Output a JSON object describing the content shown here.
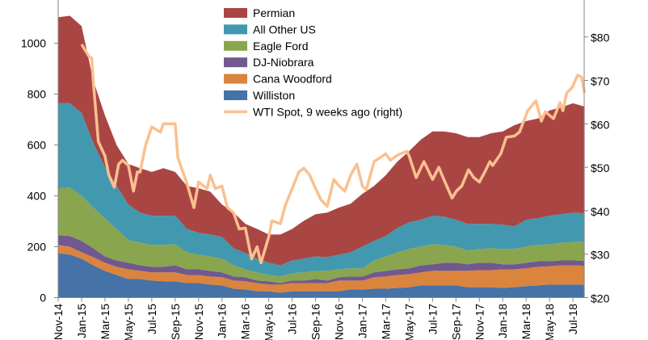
{
  "chart_data": {
    "type": "area",
    "stacked": true,
    "title": "",
    "xlabel": "",
    "ylabel": "",
    "y2label": "",
    "ylim": [
      0,
      1170
    ],
    "y2lim": [
      20,
      88.5
    ],
    "yticks": [
      0,
      200,
      400,
      600,
      800,
      1000
    ],
    "y2ticks": [
      "$20",
      "$30",
      "$40",
      "$50",
      "$60",
      "$70",
      "$80"
    ],
    "y2tick_values": [
      20,
      30,
      40,
      50,
      60,
      70,
      80
    ],
    "grid": false,
    "legend_position": "top-center",
    "x_tick_labels": [
      "Nov-14",
      "Jan-15",
      "Mar-15",
      "May-15",
      "Jul-15",
      "Sep-15",
      "Nov-15",
      "Jan-16",
      "Mar-16",
      "May-16",
      "Jul-16",
      "Sep-16",
      "Nov-16",
      "Jan-17",
      "Mar-17",
      "May-17",
      "Jul-17",
      "Sep-17",
      "Nov-17",
      "Jan-18",
      "Mar-18",
      "May-18",
      "Jul-18"
    ],
    "x": [
      "2014-11",
      "2014-12",
      "2015-01",
      "2015-02",
      "2015-03",
      "2015-04",
      "2015-05",
      "2015-06",
      "2015-07",
      "2015-08",
      "2015-09",
      "2015-10",
      "2015-11",
      "2015-12",
      "2016-01",
      "2016-02",
      "2016-03",
      "2016-04",
      "2016-05",
      "2016-06",
      "2016-07",
      "2016-08",
      "2016-09",
      "2016-10",
      "2016-11",
      "2016-12",
      "2017-01",
      "2017-02",
      "2017-03",
      "2017-04",
      "2017-05",
      "2017-06",
      "2017-07",
      "2017-08",
      "2017-09",
      "2017-10",
      "2017-11",
      "2017-12",
      "2018-01",
      "2018-02",
      "2018-03",
      "2018-04",
      "2018-05",
      "2018-06",
      "2018-07",
      "2018-08"
    ],
    "series": [
      {
        "name": "Williston",
        "color": "#4572A7",
        "values": [
          175,
          169,
          153,
          127,
          105,
          89,
          73,
          73,
          67,
          64,
          64,
          57,
          57,
          51,
          48,
          35,
          32,
          25,
          25,
          19,
          25,
          25,
          25,
          25,
          25,
          32,
          32,
          35,
          35,
          38,
          41,
          48,
          48,
          48,
          48,
          41,
          41,
          41,
          38,
          41,
          45,
          48,
          51,
          51,
          51,
          51
        ]
      },
      {
        "name": "Cana Woodford",
        "color": "#DB843D",
        "values": [
          32,
          31,
          25,
          32,
          32,
          32,
          38,
          32,
          32,
          35,
          35,
          32,
          32,
          32,
          32,
          32,
          32,
          32,
          26,
          32,
          32,
          32,
          32,
          32,
          42,
          35,
          35,
          45,
          48,
          51,
          51,
          51,
          57,
          57,
          57,
          64,
          67,
          67,
          73,
          70,
          70,
          73,
          72,
          76,
          76,
          74
        ]
      },
      {
        "name": "DJ-Niobrara",
        "color": "#71588F",
        "values": [
          38,
          42,
          45,
          35,
          25,
          25,
          26,
          22,
          22,
          22,
          28,
          22,
          22,
          22,
          19,
          16,
          16,
          10,
          13,
          6,
          10,
          10,
          16,
          10,
          13,
          16,
          16,
          19,
          22,
          22,
          23,
          28,
          26,
          32,
          32,
          26,
          29,
          29,
          20,
          20,
          22,
          22,
          20,
          19,
          19,
          20
        ]
      },
      {
        "name": "Eagle Ford",
        "color": "#89A54E",
        "values": [
          185,
          191,
          178,
          160,
          150,
          124,
          89,
          89,
          86,
          86,
          83,
          67,
          58,
          57,
          54,
          44,
          31,
          32,
          25,
          26,
          29,
          32,
          32,
          38,
          31,
          32,
          32,
          47,
          57,
          67,
          76,
          74,
          79,
          70,
          64,
          54,
          54,
          57,
          60,
          60,
          64,
          64,
          67,
          70,
          72,
          73
        ]
      },
      {
        "name": "All Other US",
        "color": "#4298AF",
        "values": [
          334,
          331,
          325,
          254,
          201,
          169,
          140,
          118,
          115,
          115,
          112,
          92,
          86,
          86,
          86,
          67,
          64,
          54,
          48,
          44,
          50,
          54,
          57,
          54,
          58,
          63,
          86,
          77,
          80,
          96,
          105,
          105,
          112,
          111,
          105,
          105,
          99,
          96,
          96,
          89,
          105,
          105,
          112,
          112,
          116,
          113
        ]
      },
      {
        "name": "Permian",
        "color": "#A94644",
        "values": [
          338,
          344,
          341,
          246,
          203,
          160,
          159,
          175,
          172,
          187,
          172,
          169,
          175,
          169,
          127,
          140,
          115,
          117,
          111,
          121,
          124,
          149,
          166,
          175,
          185,
          191,
          207,
          216,
          239,
          261,
          280,
          315,
          331,
          335,
          340,
          341,
          341,
          356,
          366,
          398,
          388,
          392,
          414,
          420,
          430,
          420
        ]
      }
    ],
    "line_series": {
      "name": "WTI Spot, 9 weeks ago (right)",
      "axis": "right",
      "color": "#FAC08F",
      "points": [
        [
          "2015-01-01",
          78.3
        ],
        [
          "2015-01-20",
          75.5
        ],
        [
          "2015-01-27",
          75.1
        ],
        [
          "2015-02-01",
          69.9
        ],
        [
          "2015-02-14",
          55.9
        ],
        [
          "2015-03-01",
          52.6
        ],
        [
          "2015-03-11",
          48.2
        ],
        [
          "2015-03-25",
          45.4
        ],
        [
          "2015-04-06",
          50.7
        ],
        [
          "2015-04-16",
          51.6
        ],
        [
          "2015-05-01",
          50.4
        ],
        [
          "2015-05-14",
          44.5
        ],
        [
          "2015-05-24",
          48.9
        ],
        [
          "2015-06-01",
          48.9
        ],
        [
          "2015-06-15",
          55.0
        ],
        [
          "2015-07-01",
          59.3
        ],
        [
          "2015-07-23",
          58.1
        ],
        [
          "2015-08-01",
          60.0
        ],
        [
          "2015-09-01",
          60.0
        ],
        [
          "2015-09-08",
          52.2
        ],
        [
          "2015-10-01",
          46.3
        ],
        [
          "2015-10-19",
          40.7
        ],
        [
          "2015-11-01",
          46.6
        ],
        [
          "2015-11-23",
          45.1
        ],
        [
          "2015-12-01",
          48.2
        ],
        [
          "2015-12-14",
          45.1
        ],
        [
          "2016-01-01",
          45.7
        ],
        [
          "2016-01-15",
          40.7
        ],
        [
          "2016-02-01",
          39.5
        ],
        [
          "2016-02-15",
          35.8
        ],
        [
          "2016-03-01",
          36.0
        ],
        [
          "2016-03-17",
          28.9
        ],
        [
          "2016-04-01",
          31.7
        ],
        [
          "2016-04-11",
          28.0
        ],
        [
          "2016-05-01",
          34.0
        ],
        [
          "2016-05-09",
          37.7
        ],
        [
          "2016-06-01",
          37.0
        ],
        [
          "2016-06-14",
          41.4
        ],
        [
          "2016-07-01",
          45.1
        ],
        [
          "2016-07-18",
          48.9
        ],
        [
          "2016-08-01",
          49.8
        ],
        [
          "2016-08-16",
          48.2
        ],
        [
          "2016-09-01",
          45.1
        ],
        [
          "2016-09-15",
          42.5
        ],
        [
          "2016-10-01",
          41.0
        ],
        [
          "2016-10-18",
          47.2
        ],
        [
          "2016-11-01",
          45.7
        ],
        [
          "2016-11-16",
          44.5
        ],
        [
          "2016-12-01",
          48.2
        ],
        [
          "2016-12-17",
          50.7
        ],
        [
          "2017-01-01",
          45.7
        ],
        [
          "2017-01-11",
          44.8
        ],
        [
          "2017-02-01",
          51.3
        ],
        [
          "2017-02-16",
          52.2
        ],
        [
          "2017-03-01",
          53.1
        ],
        [
          "2017-03-13",
          51.6
        ],
        [
          "2017-04-01",
          52.8
        ],
        [
          "2017-04-25",
          53.7
        ],
        [
          "2017-05-01",
          52.6
        ],
        [
          "2017-05-19",
          47.6
        ],
        [
          "2017-06-09",
          51.3
        ],
        [
          "2017-07-01",
          47.2
        ],
        [
          "2017-07-17",
          50.0
        ],
        [
          "2017-08-01",
          47.0
        ],
        [
          "2017-08-21",
          42.9
        ],
        [
          "2017-09-02",
          44.5
        ],
        [
          "2017-09-16",
          45.7
        ],
        [
          "2017-10-03",
          49.4
        ],
        [
          "2017-10-17",
          47.6
        ],
        [
          "2017-11-01",
          46.6
        ],
        [
          "2017-11-15",
          48.9
        ],
        [
          "2017-11-28",
          51.3
        ],
        [
          "2017-12-05",
          50.4
        ],
        [
          "2017-12-26",
          53.1
        ],
        [
          "2018-01-10",
          56.9
        ],
        [
          "2018-02-01",
          57.2
        ],
        [
          "2018-02-14",
          58.1
        ],
        [
          "2018-03-05",
          63.0
        ],
        [
          "2018-03-26",
          65.3
        ],
        [
          "2018-04-10",
          60.6
        ],
        [
          "2018-04-20",
          62.8
        ],
        [
          "2018-05-11",
          61.2
        ],
        [
          "2018-05-28",
          64.9
        ],
        [
          "2018-06-05",
          63.0
        ],
        [
          "2018-06-15",
          67.1
        ],
        [
          "2018-06-29",
          68.4
        ],
        [
          "2018-07-13",
          71.2
        ],
        [
          "2018-07-23",
          70.8
        ],
        [
          "2018-08-01",
          67.1
        ]
      ]
    },
    "legend": [
      "Permian",
      "All Other US",
      "Eagle Ford",
      "DJ-Niobrara",
      "Cana Woodford",
      "Williston",
      "WTI Spot, 9 weeks ago (right)"
    ]
  }
}
